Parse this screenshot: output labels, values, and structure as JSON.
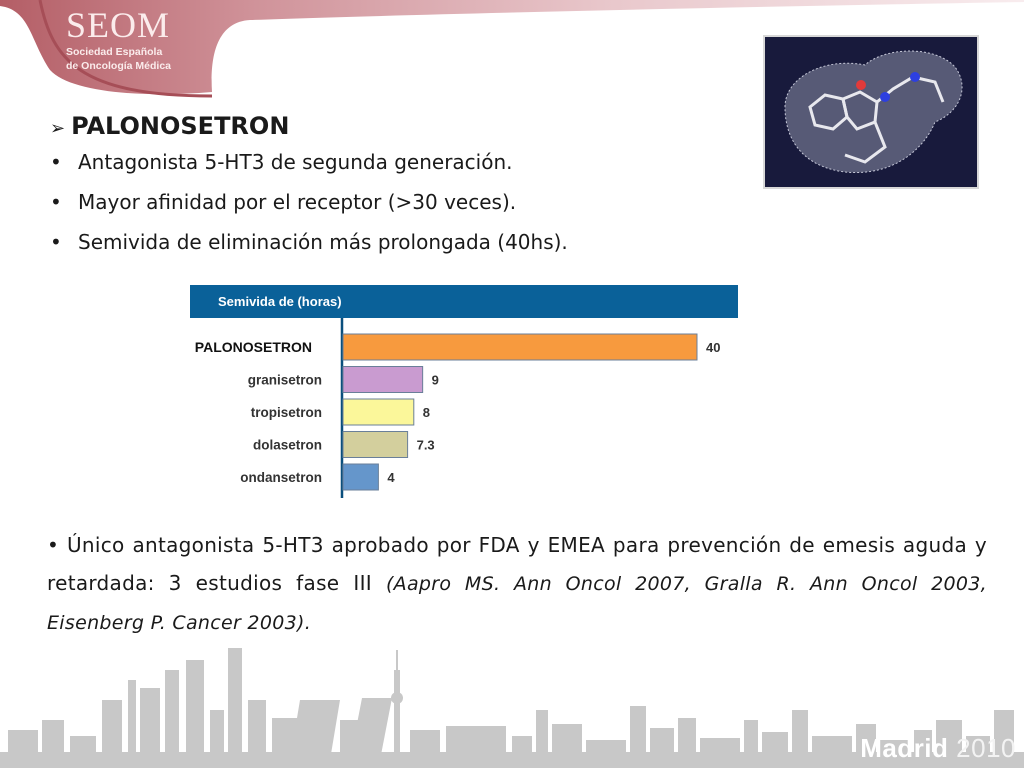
{
  "logo": {
    "name": "SEOM",
    "subtitle_line1": "Sociedad Española",
    "subtitle_line2": "de Oncología Médica"
  },
  "section_title": "PALONOSETRON",
  "bullets": [
    "Antagonista 5-HT3 de segunda generación.",
    "Mayor afinidad por el receptor (>30 veces).",
    "Semivida de eliminación más prolongada (40hs)."
  ],
  "chart_data": {
    "type": "bar",
    "orientation": "horizontal",
    "title": "Semivida de (horas)",
    "categories": [
      "PALONOSETRON",
      "granisetron",
      "tropisetron",
      "dolasetron",
      "ondansetron"
    ],
    "values": [
      40,
      9,
      8,
      7.3,
      4
    ],
    "value_labels": [
      "40",
      "9",
      "8",
      "7.3",
      "4"
    ],
    "colors": [
      "#f79a3e",
      "#c99bd0",
      "#fbf79a",
      "#d3cf9d",
      "#6596cb"
    ],
    "xlim": [
      0,
      40
    ],
    "grid": false,
    "legend": "none"
  },
  "paragraph": {
    "bullet": "•",
    "text": "Único antagonista 5-HT3 aprobado por FDA y EMEA para prevención de emesis aguda y retardada: 3 estudios fase III",
    "citation": "(Aapro MS. Ann Oncol 2007, Gralla R. Ann Oncol 2003, Eisenberg P. Cancer 2003)."
  },
  "footer": {
    "city": "Madrid",
    "year": "2010"
  },
  "colors": {
    "brand": "#c87a80",
    "chart_header": "#0a6199",
    "skyline": "#c5c5c5"
  }
}
